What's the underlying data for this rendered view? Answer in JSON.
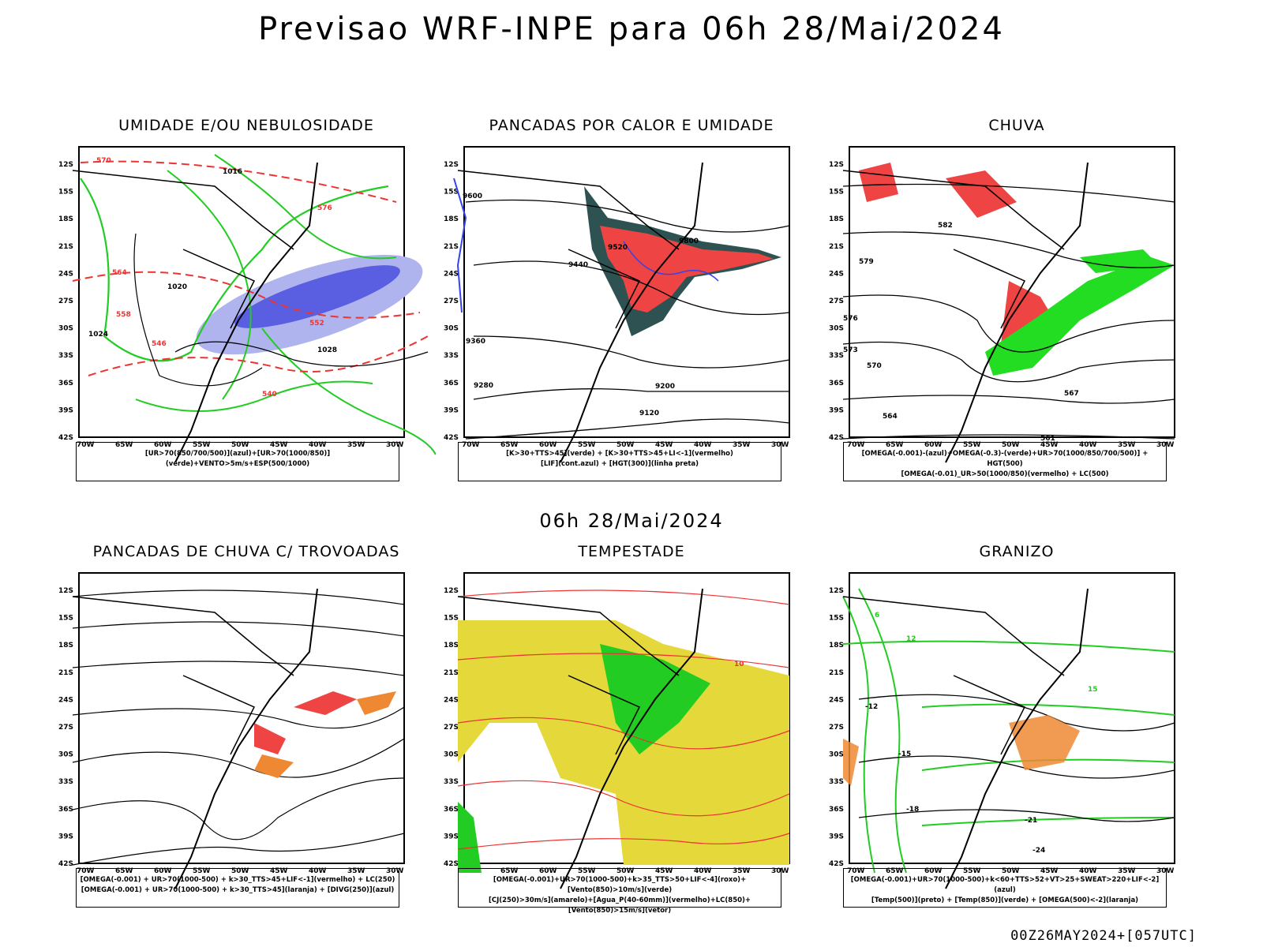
{
  "title": "Previsao WRF-INPE  para 06h 28/Mai/2024",
  "mid_date": "06h 28/Mai/2024",
  "footer": "00Z26MAY2024+[057UTC]",
  "axes": {
    "lon_labels": [
      "70W",
      "65W",
      "60W",
      "55W",
      "50W",
      "45W",
      "40W",
      "35W",
      "30W"
    ],
    "lat_labels": [
      "12S",
      "15S",
      "18S",
      "21S",
      "24S",
      "27S",
      "30S",
      "33S",
      "36S",
      "39S",
      "42S"
    ]
  },
  "panels": [
    {
      "title": "UMIDADE E/OU NEBULOSIDADE",
      "legend": [
        "[UR>70(850/700/500)](azul)+[UR>70(1000/850)](verde)+VENTO>5m/s+ESP(500/1000)"
      ],
      "contour_labels": [
        "1016",
        "1020",
        "1024",
        "1028",
        "576",
        "570",
        "564",
        "558",
        "552",
        "546",
        "540"
      ]
    },
    {
      "title": "PANCADAS POR CALOR E UMIDADE",
      "legend": [
        "[K>30+TTS>45](verde) + [K>30+TTS>45+LI<-1](vermelho)",
        "[LIF](cont.azul) + [HGT(300)](linha preta)"
      ],
      "contour_labels": [
        "9600",
        "9520",
        "9440",
        "9360",
        "9280",
        "9200",
        "9120",
        "9800"
      ]
    },
    {
      "title": "CHUVA",
      "legend": [
        "[OMEGA(-0.001)-(azul)+OMEGA(-0.3)-(verde)+UR>70(1000/850/700/500)] + HGT(500)",
        "[OMEGA(-0.01)_UR>50(1000/850)(vermelho) + LC(500)"
      ],
      "contour_labels": [
        "582",
        "579",
        "576",
        "573",
        "570",
        "567",
        "564",
        "561"
      ]
    },
    {
      "title": "PANCADAS DE CHUVA C/ TROVOADAS",
      "legend": [
        "[OMEGA(-0.001) + UR>70(1000-500) + k>30_TTS>45+LIF<-1](vermelho) + LC(250)",
        "[OMEGA(-0.001) + UR>70(1000-500) + k>30_TTS>45](laranja) + [DIVG(250)](azul)"
      ],
      "contour_labels": []
    },
    {
      "title": "TEMPESTADE",
      "legend": [
        "[OMEGA(-0.001)+UR>70(1000-500)+k>35_TTS>50+LIF<-4](roxo)+[Vento(850)>10m/s](verde)",
        "[CJ(250)>30m/s](amarelo)+[Agua_P(40-60mm)](vermelho)+LC(850)+[Vento(850)>15m/s](vetor)"
      ],
      "contour_labels": [
        "10"
      ]
    },
    {
      "title": "GRANIZO",
      "legend": [
        "[OMEGA(-0.001)+UR>70(1000-500)+k<60+TTS>52+VT>25+SWEAT>220+LIF<-2](azul)",
        "[Temp(500)](preto) + [Temp(850)](verde) + [OMEGA(500)<-2](laranja)"
      ],
      "contour_labels": [
        "-12",
        "-15",
        "-18",
        "-21",
        "-24",
        "6",
        "12",
        "15"
      ]
    }
  ],
  "colors": {
    "green": "#22cc22",
    "blue": "#3344ee",
    "red": "#ee3333",
    "orange": "#ee8833",
    "yellow": "#e5d83a",
    "darkteal": "#2e5252",
    "lightblue": "#b0b4ee"
  }
}
